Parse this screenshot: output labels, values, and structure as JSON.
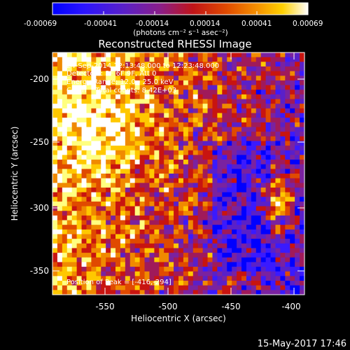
{
  "colorbar": {
    "ticks": [
      "-0.00069",
      "-0.00041",
      "-0.00014",
      "0.00014",
      "0.00041",
      "0.00069"
    ],
    "unit_label": "(photons cm⁻² s⁻¹ asec⁻²)"
  },
  "title": "Reconstructed RHESSI Image",
  "info": [
    "24-Sep-2014 12:13:48.000 to 12:23:48.000",
    "Detectors: 3F 6F 9F, Att 0",
    "Energy Range: 12.0 - 25.0 keV",
    "Clean    Total counts: 8.42E+03"
  ],
  "peak": "Position of Peak = [-416,-294]",
  "axes": {
    "xlabel": "Heliocentric X (arcsec)",
    "ylabel": "Heliocentric Y (arcsec)",
    "xticks": [
      "-550",
      "-500",
      "-450",
      "-400"
    ],
    "yticks": [
      "-200",
      "-250",
      "-300",
      "-350"
    ]
  },
  "footer_date": "15-May-2017 17:46",
  "colors": {
    "cmap": [
      "#0000ff",
      "#3a1aff",
      "#5a20c8",
      "#7a22a0",
      "#a01a5a",
      "#c81410",
      "#e04a00",
      "#f08a00",
      "#ffc800",
      "#ffff80",
      "#ffffff"
    ]
  }
}
